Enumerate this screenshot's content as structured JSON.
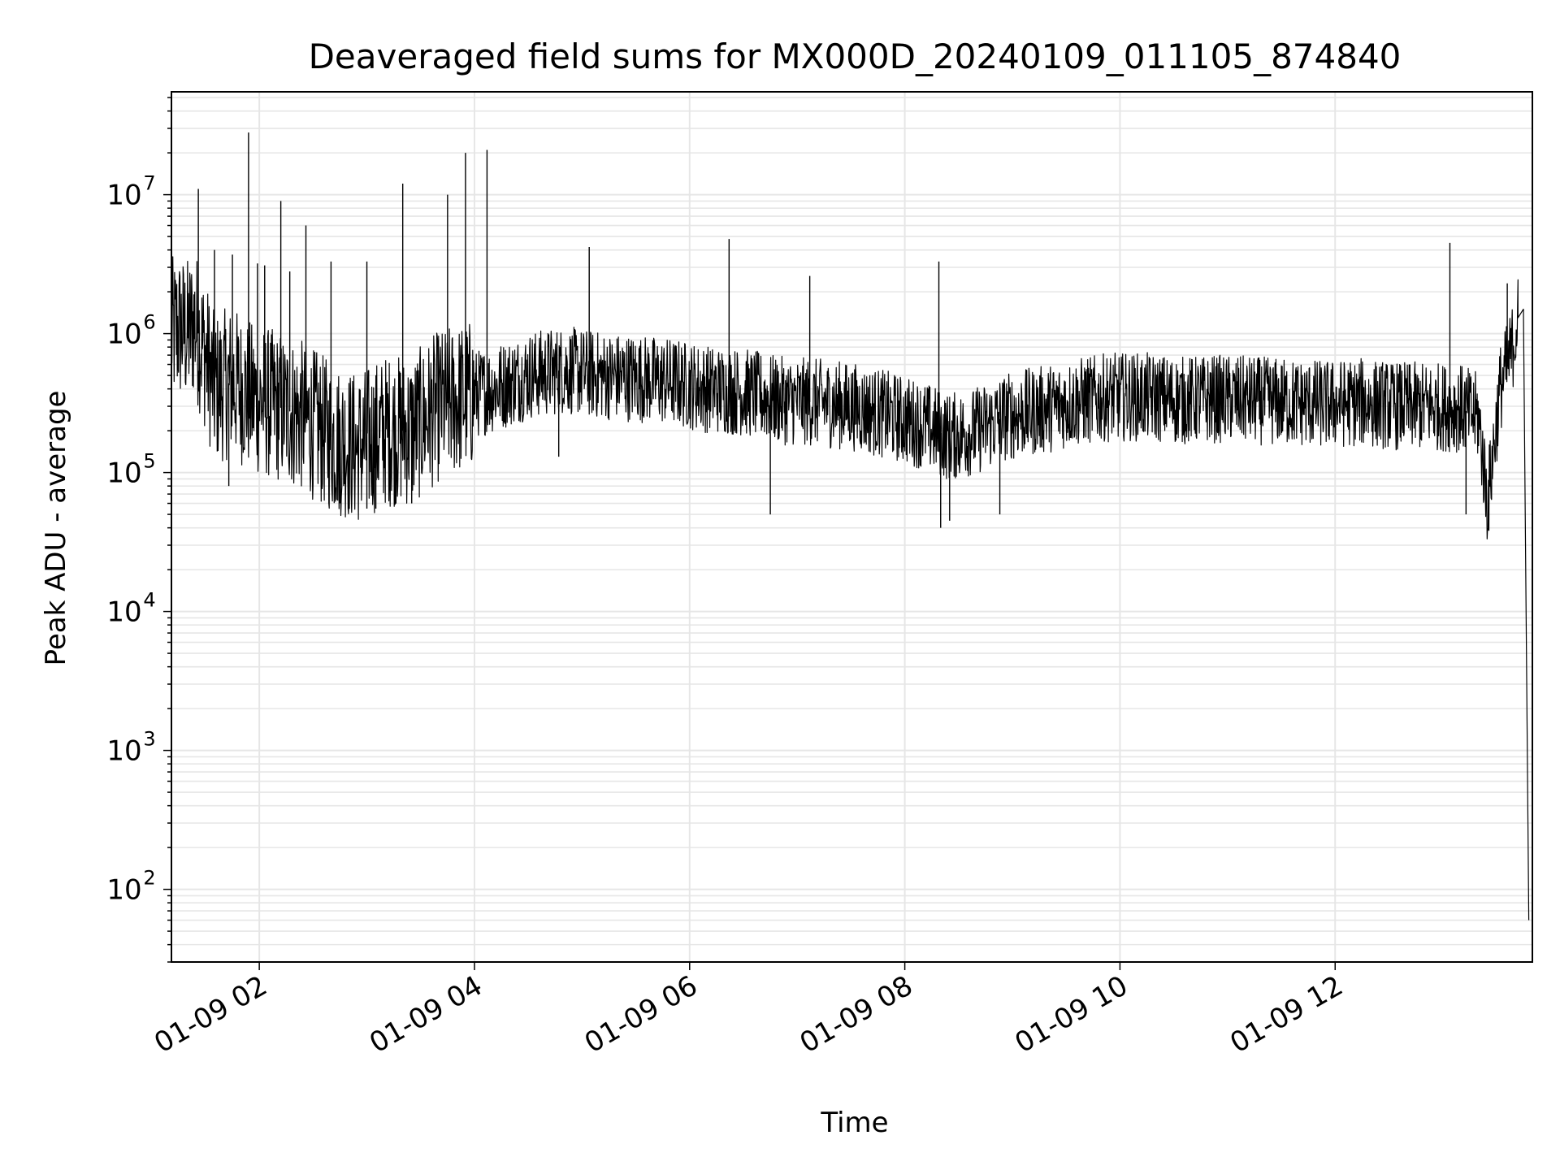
{
  "chart_data": {
    "type": "line",
    "title": "Deaveraged field sums for MX000D_20240109_011105_874840",
    "xlabel": "Time",
    "ylabel": "Peak ADU - average",
    "y_scale": "log",
    "ylim": [
      30,
      55000000
    ],
    "xlim": [
      "01-09 01:11",
      "01-09 13:50"
    ],
    "x_tick_labels": [
      "01-09 02",
      "01-09 04",
      "01-09 06",
      "01-09 08",
      "01-09 10",
      "01-09 12"
    ],
    "y_tick_labels": [
      "10^2",
      "10^3",
      "10^4",
      "10^5",
      "10^6",
      "10^7"
    ],
    "grid": true,
    "legend": "none",
    "series_color": "#000000",
    "series": [
      {
        "x": [
          "01-09 01:11",
          "01-09 01:15",
          "01-09 01:20",
          "01-09 01:24",
          "01-09 01:30",
          "01-09 01:35",
          "01-09 01:45",
          "01-09 01:55",
          "01-09 02:10",
          "01-09 02:25",
          "01-09 02:40",
          "01-09 02:55",
          "01-09 03:10",
          "01-09 03:25",
          "01-09 03:40",
          "01-09 03:55",
          "01-09 04:10",
          "01-09 04:30",
          "01-09 04:50",
          "01-09 05:10",
          "01-09 05:30",
          "01-09 05:50",
          "01-09 06:10",
          "01-09 06:30",
          "01-09 06:50",
          "01-09 07:10",
          "01-09 07:30",
          "01-09 07:50",
          "01-09 08:10",
          "01-09 08:25",
          "01-09 08:40",
          "01-09 08:55",
          "01-09 09:15",
          "01-09 09:35",
          "01-09 09:55",
          "01-09 10:15",
          "01-09 10:35",
          "01-09 10:55",
          "01-09 11:15",
          "01-09 11:35",
          "01-09 11:55",
          "01-09 12:15",
          "01-09 12:35",
          "01-09 12:55",
          "01-09 13:10",
          "01-09 13:20",
          "01-09 13:25",
          "01-09 13:32",
          "01-09 13:38",
          "01-09 13:42",
          "01-09 13:45",
          "01-09 13:48"
        ],
        "y": [
          1000000,
          1100000,
          1000000,
          1200000,
          700000,
          400000,
          450000,
          350000,
          300000,
          250000,
          180000,
          150000,
          200000,
          200000,
          300000,
          350000,
          400000,
          500000,
          550000,
          500000,
          480000,
          450000,
          400000,
          380000,
          330000,
          320000,
          300000,
          260000,
          220000,
          180000,
          200000,
          250000,
          280000,
          320000,
          350000,
          350000,
          330000,
          340000,
          330000,
          320000,
          310000,
          320000,
          300000,
          300000,
          290000,
          250000,
          60000,
          400000,
          700000,
          1300000,
          1500000,
          60
        ]
      }
    ],
    "spikes": [
      {
        "x": "01-09 01:26",
        "y": 11000000
      },
      {
        "x": "01-09 01:35",
        "y": 4000000
      },
      {
        "x": "01-09 01:45",
        "y": 3700000
      },
      {
        "x": "01-09 01:54",
        "y": 28000000
      },
      {
        "x": "01-09 01:59",
        "y": 3200000
      },
      {
        "x": "01-09 02:03",
        "y": 3100000
      },
      {
        "x": "01-09 02:12",
        "y": 9000000
      },
      {
        "x": "01-09 02:17",
        "y": 2800000
      },
      {
        "x": "01-09 02:26",
        "y": 6000000
      },
      {
        "x": "01-09 02:40",
        "y": 3300000
      },
      {
        "x": "01-09 03:00",
        "y": 3300000
      },
      {
        "x": "01-09 03:20",
        "y": 12000000
      },
      {
        "x": "01-09 03:45",
        "y": 10000000
      },
      {
        "x": "01-09 03:55",
        "y": 20000000
      },
      {
        "x": "01-09 04:07",
        "y": 21000000
      },
      {
        "x": "01-09 05:04",
        "y": 4200000
      },
      {
        "x": "01-09 06:22",
        "y": 4800000
      },
      {
        "x": "01-09 07:07",
        "y": 2600000
      },
      {
        "x": "01-09 08:19",
        "y": 3300000
      },
      {
        "x": "01-09 13:04",
        "y": 4500000
      },
      {
        "x": "01-09 13:36",
        "y": 2300000
      }
    ],
    "dips": [
      {
        "x": "01-09 01:43",
        "y": 80000
      },
      {
        "x": "01-09 02:45",
        "y": 60000
      },
      {
        "x": "01-09 03:00",
        "y": 55000
      },
      {
        "x": "01-09 03:05",
        "y": 55000
      },
      {
        "x": "01-09 03:25",
        "y": 60000
      },
      {
        "x": "01-09 04:47",
        "y": 130000
      },
      {
        "x": "01-09 06:45",
        "y": 50000
      },
      {
        "x": "01-09 08:20",
        "y": 40000
      },
      {
        "x": "01-09 08:25",
        "y": 45000
      },
      {
        "x": "01-09 08:53",
        "y": 50000
      },
      {
        "x": "01-09 13:13",
        "y": 50000
      }
    ]
  }
}
